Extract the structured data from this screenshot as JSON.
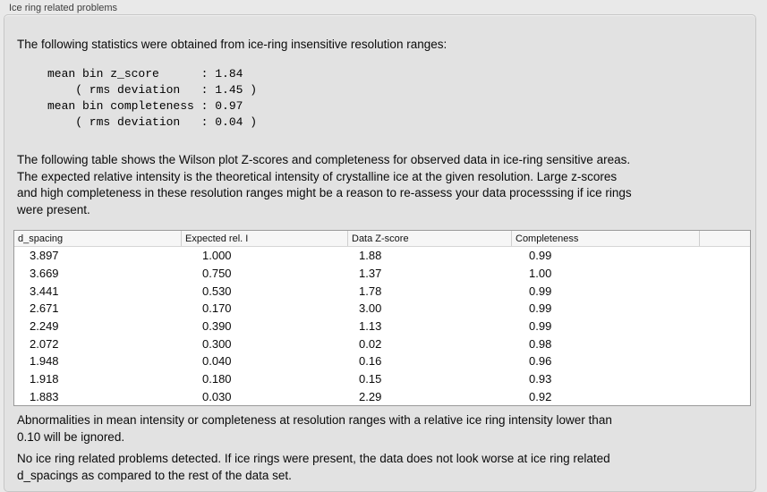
{
  "group": {
    "title": "Ice ring related problems"
  },
  "intro": "The following statistics were obtained from ice-ring insensitive resolution ranges:",
  "stats_block": "mean bin z_score      : 1.84\n    ( rms deviation   : 1.45 )\nmean bin completeness : 0.97\n    ( rms deviation   : 0.04 )",
  "table_description": "The following table shows the Wilson plot Z-scores and completeness for observed data in ice-ring sensitive areas.\nThe expected relative intensity is the theoretical intensity of crystalline ice at the given resolution. Large z-scores\nand high completeness in these resolution ranges might be a reason to re-assess your data processsing if ice rings\nwere present.",
  "table": {
    "columns": [
      "d_spacing",
      "Expected rel. I",
      "Data Z-score",
      "Completeness"
    ],
    "rows": [
      [
        "3.897",
        "1.000",
        "1.88",
        "0.99"
      ],
      [
        "3.669",
        "0.750",
        "1.37",
        "1.00"
      ],
      [
        "3.441",
        "0.530",
        "1.78",
        "0.99"
      ],
      [
        "2.671",
        "0.170",
        "3.00",
        "0.99"
      ],
      [
        "2.249",
        "0.390",
        "1.13",
        "0.99"
      ],
      [
        "2.072",
        "0.300",
        "0.02",
        "0.98"
      ],
      [
        "1.948",
        "0.040",
        "0.16",
        "0.96"
      ],
      [
        "1.918",
        "0.180",
        "0.15",
        "0.93"
      ],
      [
        "1.883",
        "0.030",
        "2.29",
        "0.92"
      ]
    ]
  },
  "ignore_note": "Abnormalities in mean intensity or completeness at resolution ranges with a relative ice ring intensity lower than\n0.10 will be ignored.",
  "conclusion": "No ice ring related problems detected. If ice rings were present, the data does not look worse at ice ring related\nd_spacings as compared to the rest of the data set."
}
